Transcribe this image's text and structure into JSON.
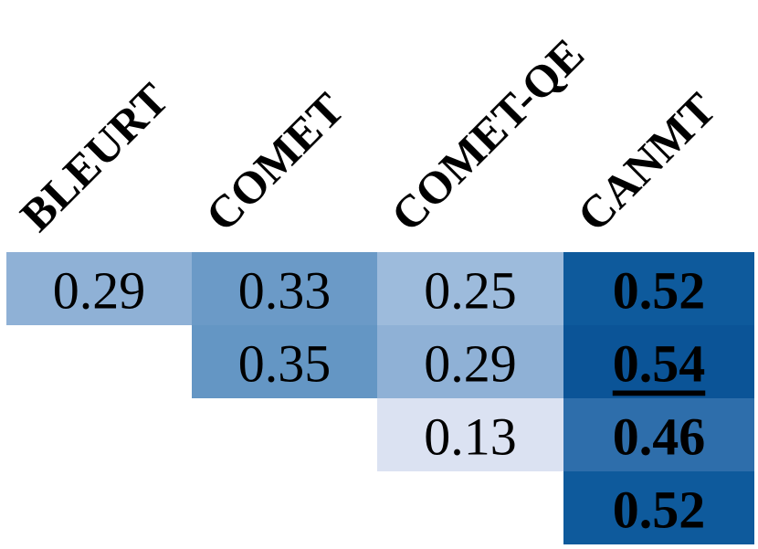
{
  "table": {
    "header": [
      "BLEURT",
      "COMET",
      "COMET-QE",
      "CANMT"
    ],
    "rows": [
      [
        {
          "text": "0.29",
          "color": "#8fb1d6"
        },
        {
          "text": "0.33",
          "color": "#6b9ac7"
        },
        {
          "text": "0.25",
          "color": "#9dbbdc"
        },
        {
          "text": "0.52",
          "color": "#0e5a9c",
          "bold": true
        }
      ],
      [
        null,
        {
          "text": "0.35",
          "color": "#6496c4"
        },
        {
          "text": "0.29",
          "color": "#8fb1d6"
        },
        {
          "text": "0.54",
          "color": "#0b5497",
          "bold": true,
          "underline": true
        }
      ],
      [
        null,
        null,
        {
          "text": "0.13",
          "color": "#dbe2f2"
        },
        {
          "text": "0.46",
          "color": "#2e6eab",
          "bold": true
        }
      ],
      [
        null,
        null,
        null,
        {
          "text": "0.52",
          "color": "#0e5a9c",
          "bold": true
        }
      ]
    ]
  }
}
